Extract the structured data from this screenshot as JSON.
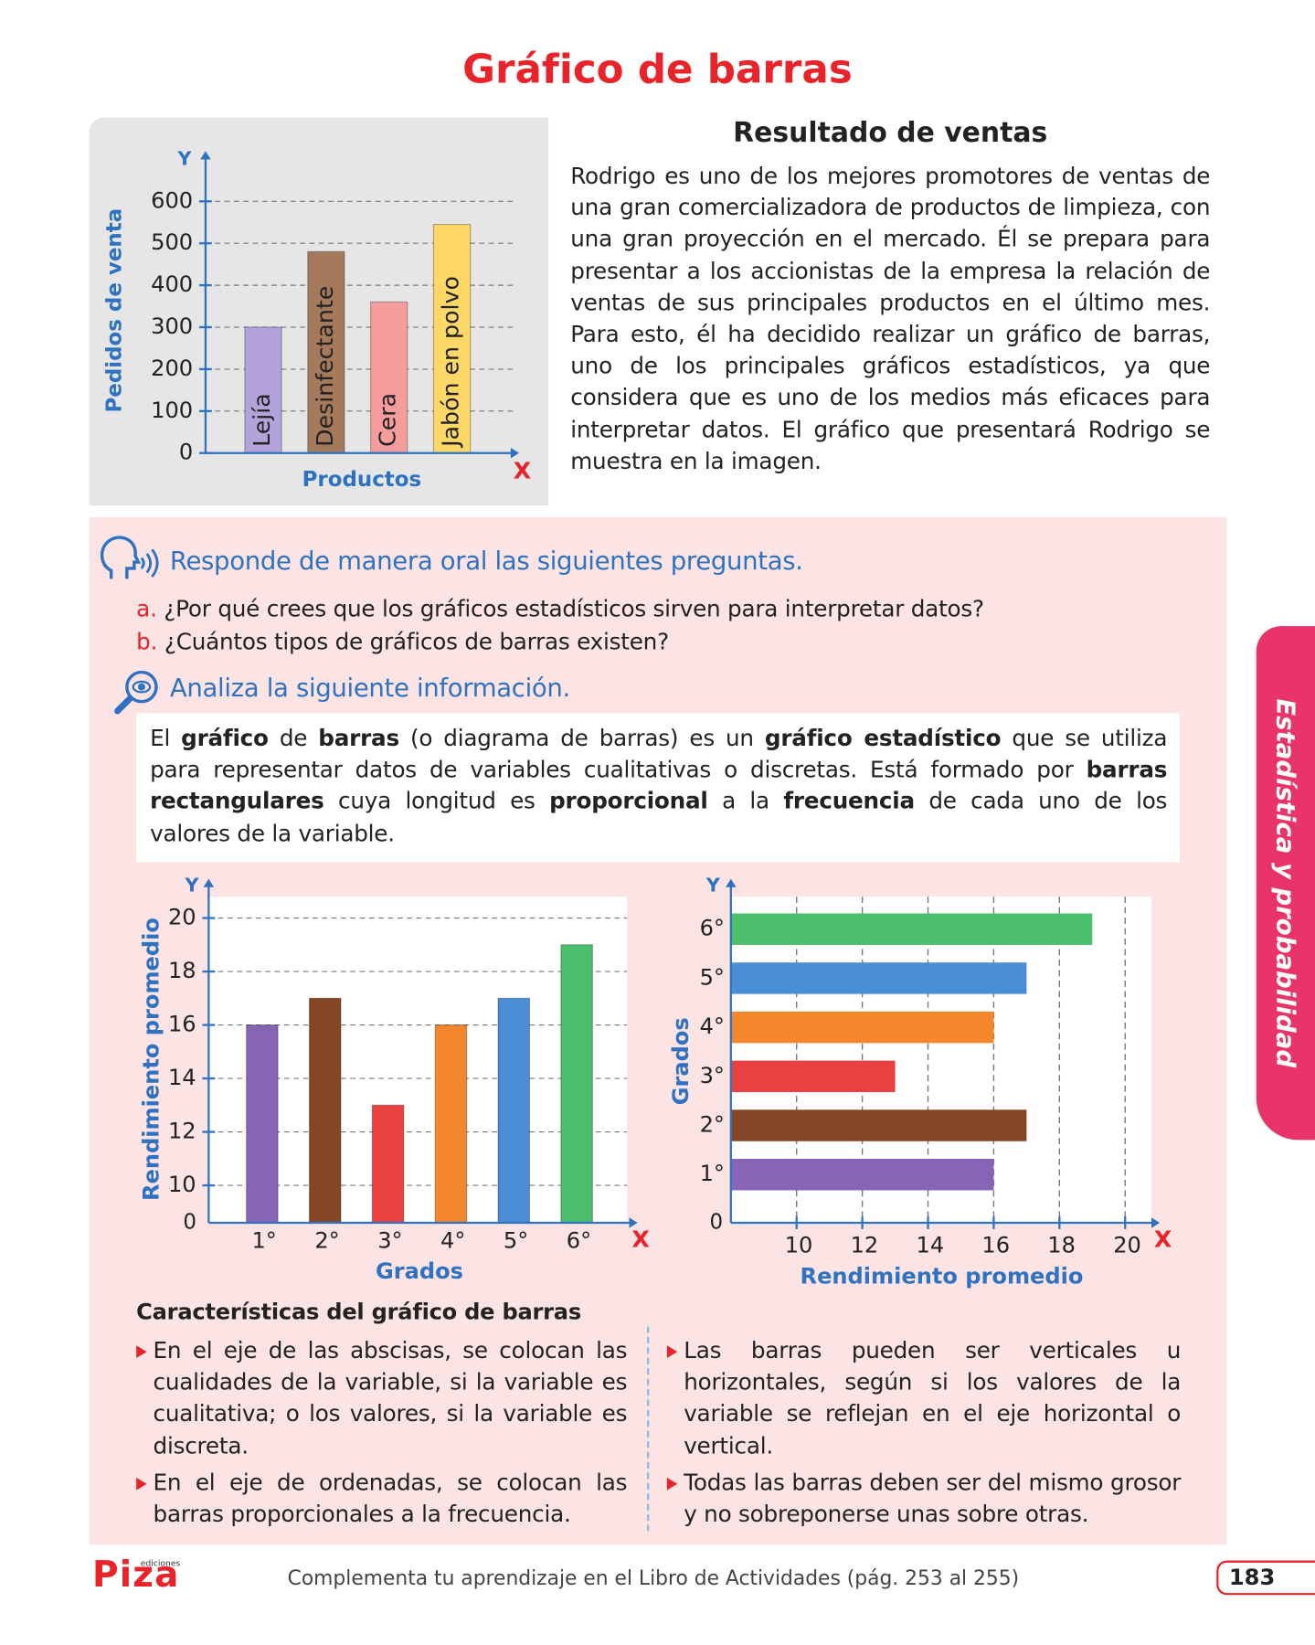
{
  "title": "Gráfico de barras",
  "intro": {
    "heading": "Resultado de ventas",
    "text": "Rodrigo es uno de los mejores promotores de ventas de una gran comercializadora de productos de limpieza, con una gran proyección en el mercado. Él se prepara para presentar a los accionistas de la empresa la relación de ventas de sus principales productos en el último mes. Para esto, él ha decidido realizar un gráfico de barras, uno de los principales gráficos estadísticos, ya que considera que es uno de los medios más eficaces para interpretar datos. El gráfico que presentará Rodrigo se muestra en la imagen."
  },
  "oral": {
    "heading": "Responde de manera oral las siguientes preguntas.",
    "questions": [
      {
        "letter": "a.",
        "text": "¿Por qué crees que los gráficos estadísticos sirven para interpretar datos?"
      },
      {
        "letter": "b.",
        "text": "¿Cuántos tipos de gráficos de barras existen?"
      }
    ]
  },
  "analyze": {
    "heading": "Analiza la siguiente información.",
    "definition": [
      {
        "t": "El ",
        "b": false
      },
      {
        "t": "gráfico",
        "b": true
      },
      {
        "t": " de ",
        "b": false
      },
      {
        "t": "barras",
        "b": true
      },
      {
        "t": " (o diagrama de barras) es un ",
        "b": false
      },
      {
        "t": "gráfico estadístico",
        "b": true
      },
      {
        "t": " que se utiliza para representar datos de variables cualitativas o discretas. Está formado por ",
        "b": false
      },
      {
        "t": "barras rectangulares",
        "b": true
      },
      {
        "t": " cuya longitud es ",
        "b": false
      },
      {
        "t": "proporcional",
        "b": true
      },
      {
        "t": " a la ",
        "b": false
      },
      {
        "t": "frecuencia",
        "b": true
      },
      {
        "t": " de cada uno de los valores de la variable.",
        "b": false
      }
    ]
  },
  "chart_data": [
    {
      "type": "bar",
      "y_axis_letter": "Y",
      "x_axis_letter": "X",
      "y_label": "Pedidos de venta",
      "x_label": "Productos",
      "categories": [
        "Lejía",
        "Desinfectante",
        "Cera",
        "Jabón en polvo"
      ],
      "values": [
        300,
        480,
        360,
        545
      ],
      "colors": [
        "#b3a3da",
        "#a57a5c",
        "#f59c9c",
        "#fdd866"
      ],
      "ylim": [
        0,
        650
      ],
      "yticks": [
        0,
        100,
        200,
        300,
        400,
        500,
        600
      ],
      "grid": true
    },
    {
      "type": "bar",
      "y_axis_letter": "Y",
      "x_axis_letter": "X",
      "y_label": "Rendimiento promedio",
      "x_label": "Grados",
      "origin_label": "0",
      "categories": [
        "1°",
        "2°",
        "3°",
        "4°",
        "5°",
        "6°"
      ],
      "values": [
        16,
        17,
        13,
        16,
        17,
        19
      ],
      "colors": [
        "#8765b6",
        "#844624",
        "#e8413f",
        "#f4862b",
        "#4a8fd6",
        "#4cbf6c"
      ],
      "ylim": [
        8.6,
        20.8
      ],
      "yticks": [
        10,
        12,
        14,
        16,
        18,
        20
      ],
      "grid": true
    },
    {
      "type": "bar",
      "orientation": "horizontal",
      "y_axis_letter": "Y",
      "x_axis_letter": "X",
      "y_label": "Grados",
      "x_label": "Rendimiento promedio",
      "origin_label": "0",
      "categories": [
        "1°",
        "2°",
        "3°",
        "4°",
        "5°",
        "6°"
      ],
      "values": [
        16,
        17,
        13,
        16,
        17,
        19
      ],
      "colors": [
        "#8765b6",
        "#844624",
        "#e8413f",
        "#f4862b",
        "#4a8fd6",
        "#4cbf6c"
      ],
      "xlim": [
        8,
        20.8
      ],
      "xticks": [
        10,
        12,
        14,
        16,
        18,
        20
      ],
      "grid": true
    }
  ],
  "characteristics": {
    "heading": "Características del gráfico de barras",
    "left": [
      "En el eje de las abscisas, se colocan las cualidades de la variable, si la variable es cualitativa; o los valores, si la variable es discreta.",
      "En el eje de ordenadas, se colocan las barras proporcionales a la frecuencia."
    ],
    "right": [
      "Las barras pueden ser verticales u horizontales, según si los valores de la variable se reflejan en el eje horizontal o vertical.",
      "Todas las barras deben ser del mismo grosor y no sobreponerse unas sobre otras."
    ]
  },
  "side_tab": "Estadística y probabilidad",
  "footer": {
    "logo": "Piza",
    "logo_sub": "ediciones",
    "text": "Complementa tu aprendizaje en el Libro de Actividades (pág. 253 al 255)",
    "page": "183"
  }
}
